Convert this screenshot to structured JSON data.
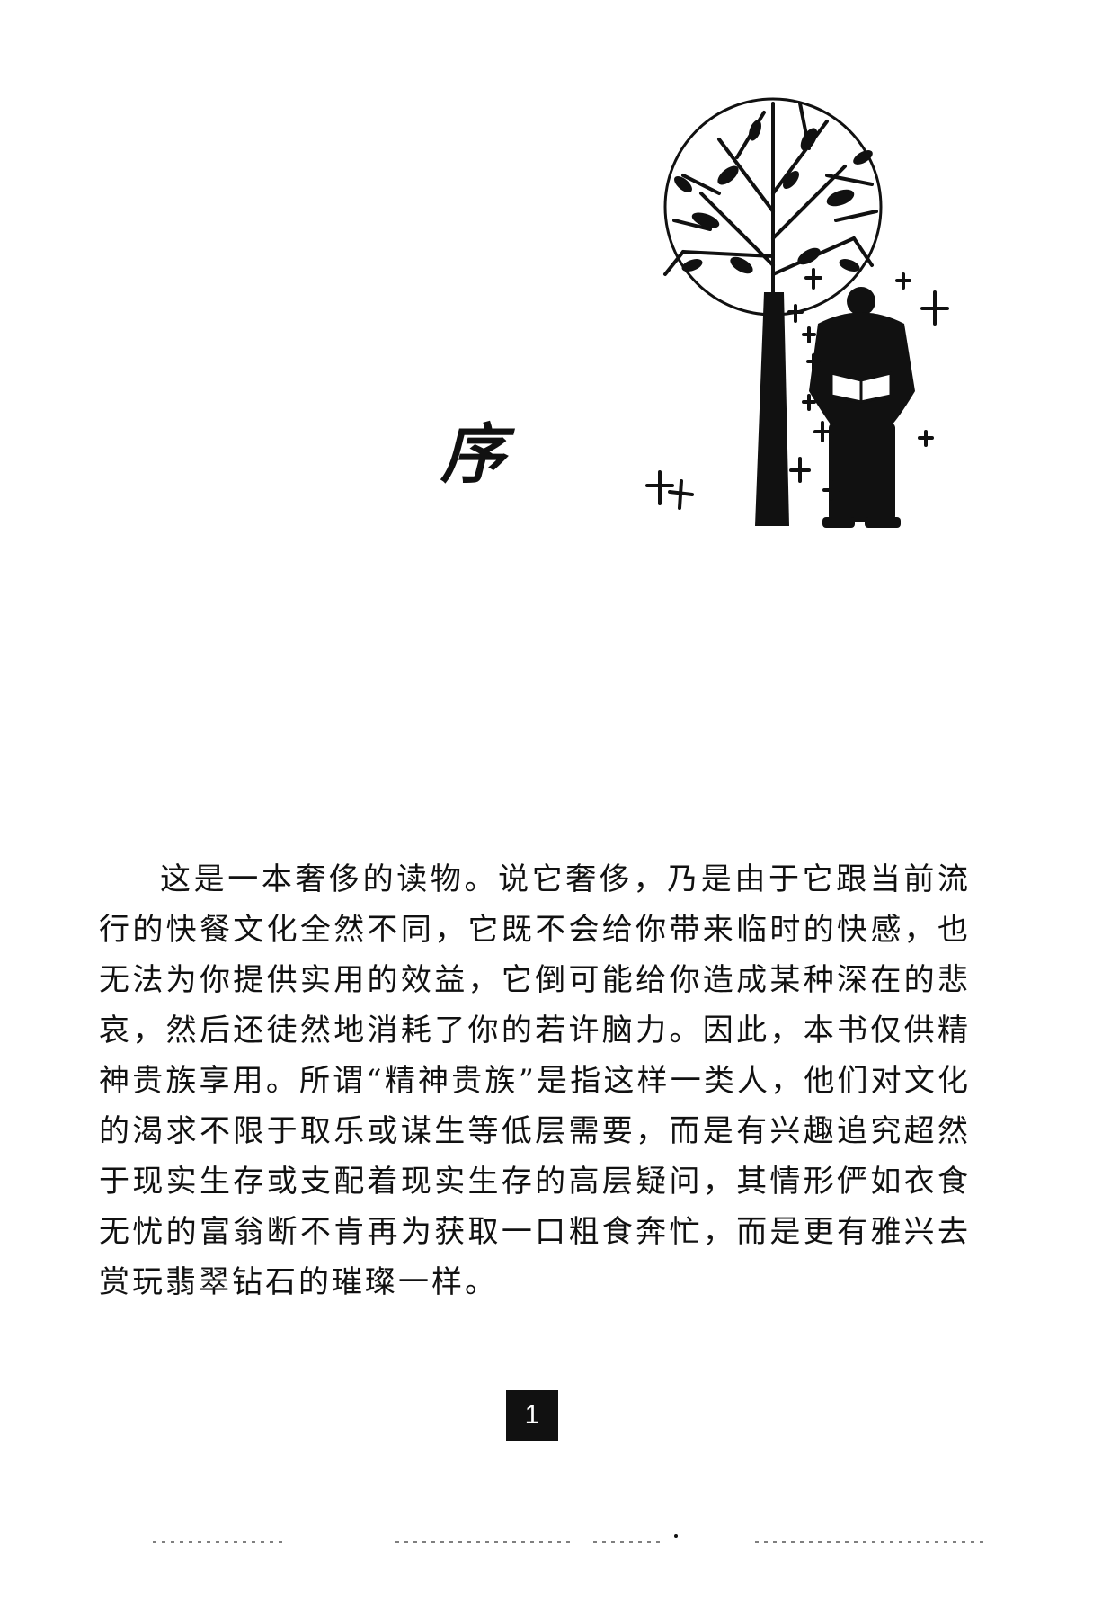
{
  "chapter": {
    "title": "序"
  },
  "body": {
    "paragraph": "这是一本奢侈的读物。说它奢侈，乃是由于它跟当前流行的快餐文化全然不同，它既不会给你带来临时的快感，也无法为你提供实用的效益，它倒可能给你造成某种深在的悲哀，然后还徒然地消耗了你的若许脑力。因此，本书仅供精神贵族享用。所谓“精神贵族”是指这样一类人，他们对文化的渴求不限于取乐或谋生等低层需要，而是有兴趣追究超然于现实生存或支配着现实生存的高层疑问，其情形俨如衣食无忧的富翁断不肯再为获取一口粗食奔忙，而是更有雅兴去赏玩翡翠钻石的璀璨一样。"
  },
  "footer": {
    "page_number": "1"
  },
  "illustration": {
    "icon": "tree-and-reading-figure-illustration",
    "ink_color": "#111111"
  }
}
